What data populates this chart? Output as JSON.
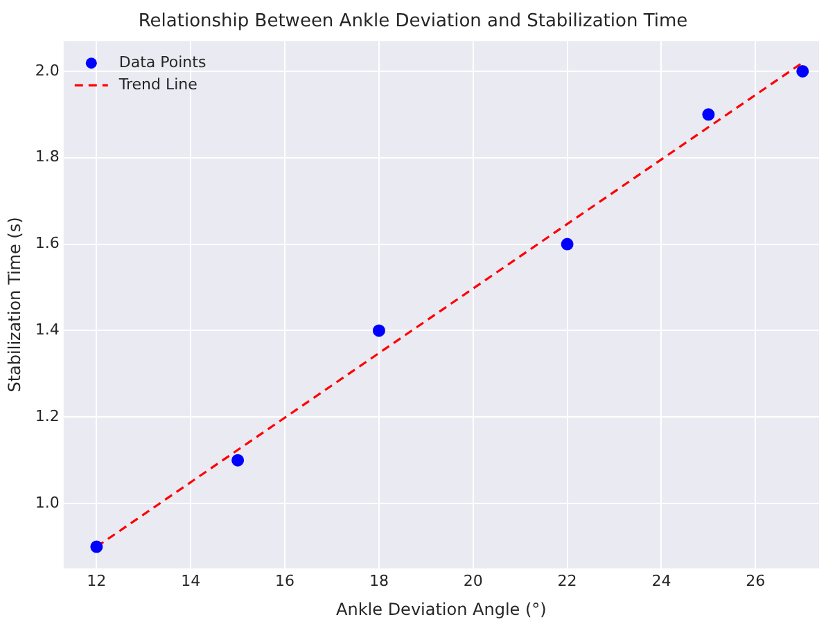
{
  "chart_data": {
    "type": "scatter",
    "title": "Relationship Between Ankle Deviation and Stabilization Time",
    "xlabel": "Ankle Deviation Angle (°)",
    "ylabel": "Stabilization Time (s)",
    "series": [
      {
        "name": "Data Points",
        "type": "scatter",
        "color": "#0000ff",
        "marker": "circle",
        "x": [
          12,
          15,
          18,
          22,
          25,
          27
        ],
        "values": [
          0.9,
          1.1,
          1.4,
          1.6,
          1.9,
          2.0
        ]
      },
      {
        "name": "Trend Line",
        "type": "line",
        "color": "#ff0000",
        "marker": "none",
        "line_style": "dashed",
        "x": [
          12,
          27
        ],
        "values": [
          0.9,
          2.02
        ]
      }
    ],
    "xlim": [
      11.3,
      27.35
    ],
    "xticks": [
      12,
      14,
      16,
      18,
      20,
      22,
      24,
      26
    ],
    "ylim": [
      0.85,
      2.07
    ],
    "yticks": [
      {
        "value": 1,
        "label": "1.0"
      },
      1.2,
      1.4,
      1.6,
      1.8,
      {
        "value": 2,
        "label": "2.0"
      }
    ],
    "grid": true,
    "legend": "top left"
  }
}
